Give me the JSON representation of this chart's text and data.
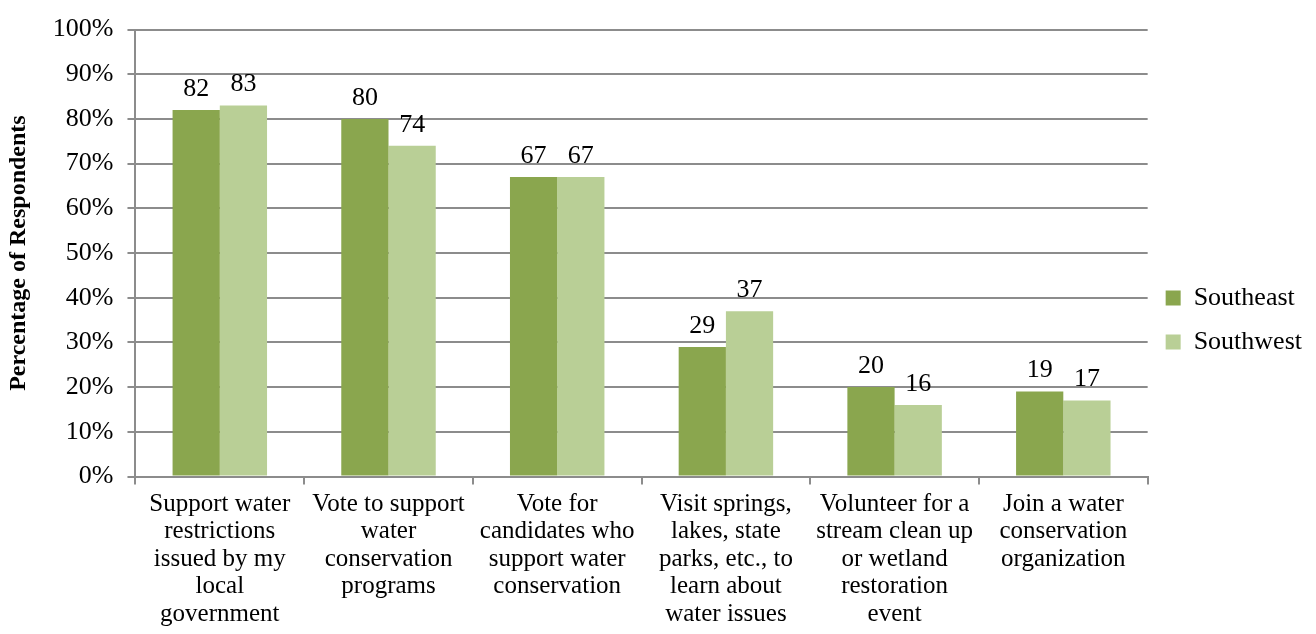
{
  "chart_data": {
    "type": "bar",
    "ylabel": "Percentage of Respondents",
    "categories": [
      "Support water restrictions issued by my local government",
      "Vote to support water conservation programs",
      "Vote for candidates who support water conservation",
      "Visit springs, lakes, state parks, etc., to learn about water issues",
      "Volunteer for a stream clean up or wetland restoration event",
      "Join a water conservation organization"
    ],
    "series": [
      {
        "name": "Southeast",
        "color": "#8aa64e",
        "values": [
          82,
          80,
          67,
          29,
          20,
          19
        ]
      },
      {
        "name": "Southwest",
        "color": "#b9cf96",
        "values": [
          83,
          74,
          67,
          37,
          16,
          17
        ]
      }
    ],
    "ylim": [
      0,
      100
    ],
    "yticks": [
      {
        "value": 0,
        "label": "0%"
      },
      {
        "value": 10,
        "label": "10%"
      },
      {
        "value": 20,
        "label": "20%"
      },
      {
        "value": 30,
        "label": "30%"
      },
      {
        "value": 40,
        "label": "40%"
      },
      {
        "value": 50,
        "label": "50%"
      },
      {
        "value": 60,
        "label": "60%"
      },
      {
        "value": 70,
        "label": "70%"
      },
      {
        "value": 80,
        "label": "80%"
      },
      {
        "value": 90,
        "label": "90%"
      },
      {
        "value": 100,
        "label": "100%"
      }
    ],
    "grid": "y",
    "legend": "right",
    "data_labels": true
  }
}
